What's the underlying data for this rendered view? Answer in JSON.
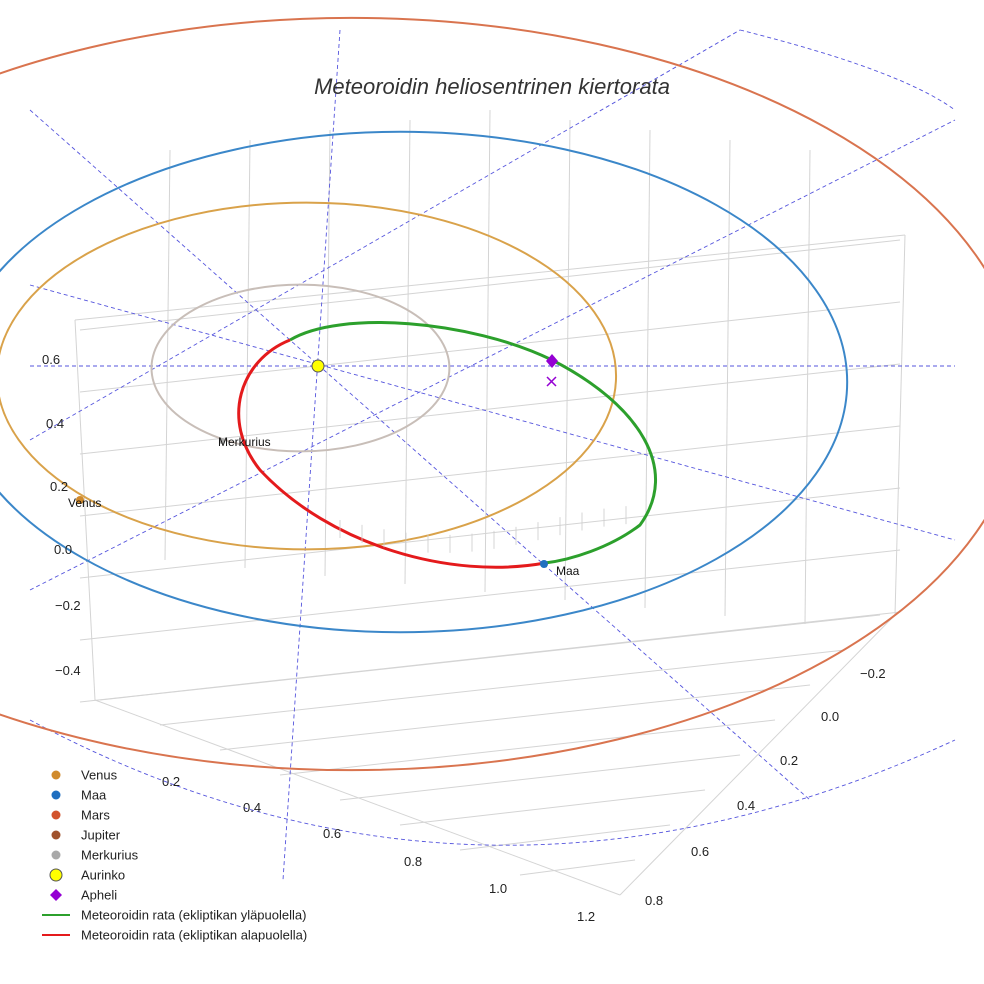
{
  "chart_data": {
    "type": "line",
    "title": "Meteoroidin heliosentrinen kiertorata",
    "axes": {
      "x_ticks": [
        "0.2",
        "0.4",
        "0.6",
        "0.8",
        "1.0",
        "1.2"
      ],
      "y_ticks": [
        "−0.2",
        "0.0",
        "0.2",
        "0.4",
        "0.6",
        "0.8"
      ],
      "z_ticks": [
        "−0.4",
        "−0.2",
        "0.0",
        "0.2",
        "0.4",
        "0.6"
      ],
      "grid": true
    },
    "orbit_radii_au": {
      "Merkurius": 0.387,
      "Venus": 0.723,
      "Maa": 1.0,
      "Mars": 1.524
    },
    "series": [
      {
        "name": "Meteoroidin rata (ekliptikan yläpuolella)",
        "color": "#2ca02c"
      },
      {
        "name": "Meteoroidin rata (ekliptikan alapuolella)",
        "color": "#e41a1c"
      }
    ],
    "planet_labels": [
      {
        "key": "merkurius",
        "text": "Merkurius"
      },
      {
        "key": "venus",
        "text": "Venus"
      },
      {
        "key": "maa",
        "text": "Maa"
      }
    ],
    "legend": {
      "position": "bottom-left",
      "entries": [
        {
          "label": "Venus",
          "marker": "circle",
          "color": "#d08a2c"
        },
        {
          "label": "Maa",
          "marker": "circle",
          "color": "#1f6fc0"
        },
        {
          "label": "Mars",
          "marker": "circle",
          "color": "#d2532c"
        },
        {
          "label": "Jupiter",
          "marker": "circle",
          "color": "#a0522d"
        },
        {
          "label": "Merkurius",
          "marker": "circle",
          "color": "#a9a9a9"
        },
        {
          "label": "Aurinko",
          "marker": "sun",
          "color": "#ffff00"
        },
        {
          "label": "Apheli",
          "marker": "diamond",
          "color": "#9400d3"
        },
        {
          "label": "Meteoroidin rata (ekliptikan yläpuolella)",
          "marker": "line",
          "color": "#2ca02c"
        },
        {
          "label": "Meteoroidin rata (ekliptikan alapuolella)",
          "marker": "line",
          "color": "#e41a1c"
        }
      ]
    },
    "colors": {
      "mercury_orbit": "#c8beb8",
      "venus_orbit": "#d9a24a",
      "earth_orbit": "#3b87c9",
      "mars_orbit": "#d9744f",
      "guides": "#5555dd",
      "aphelion": "#9400d3"
    }
  }
}
